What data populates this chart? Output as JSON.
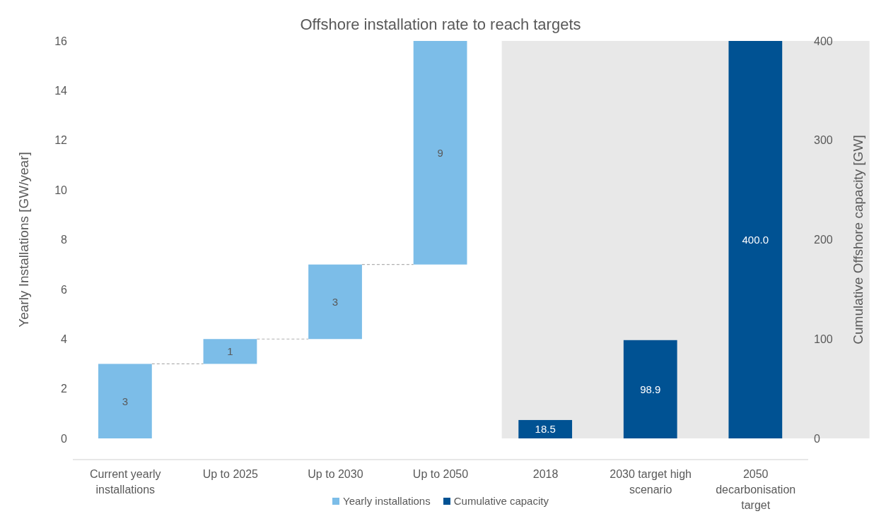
{
  "chart_data": {
    "type": "bar",
    "title": "Offshore installation rate to reach targets",
    "ylabel": "Yearly Installations [GW/year]",
    "y2label": "Cumulative Offshore capacity [GW]",
    "categories": [
      "Current yearly installations",
      "Up to 2025",
      "Up to 2030",
      "Up to 2050",
      "2018",
      "2030 target high scenario",
      "2050 decarbonisation target"
    ],
    "series": [
      {
        "name": "Yearly installations",
        "color": "#7cbde8",
        "values": [
          3,
          1,
          3,
          9,
          null,
          null,
          null
        ],
        "base": [
          0,
          3,
          4,
          7,
          null,
          null,
          null
        ],
        "value_labels": [
          "3",
          "1",
          "3",
          "9",
          null,
          null,
          null
        ]
      },
      {
        "name": "Cumulative capacity",
        "color": "#005293",
        "axis": "y2",
        "values": [
          null,
          null,
          null,
          null,
          18.5,
          98.9,
          400
        ],
        "value_labels": [
          null,
          null,
          null,
          null,
          "18.5",
          "98.9",
          "400.0"
        ]
      }
    ],
    "ylim": [
      0,
      16
    ],
    "yticks": [
      0,
      2,
      4,
      6,
      8,
      10,
      12,
      14,
      16
    ],
    "y2lim": [
      0,
      400
    ],
    "y2ticks": [
      0,
      100,
      200,
      300,
      400
    ],
    "bands": [
      {
        "axis": "x",
        "from": "2018",
        "to": "2050 decarbonisation target",
        "color": "#e8e8e8"
      }
    ],
    "grid": false,
    "legend": "bottom"
  }
}
